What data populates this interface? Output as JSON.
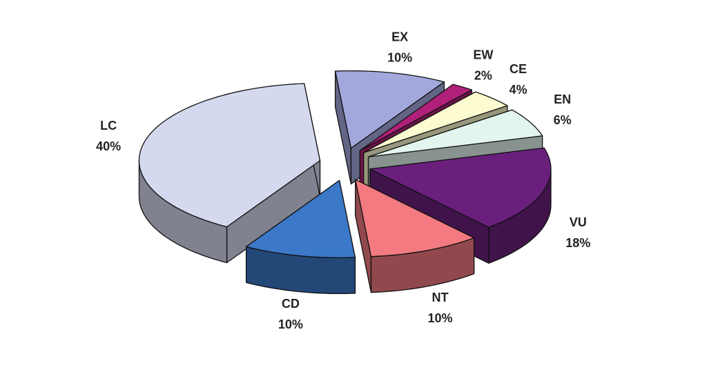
{
  "chart_data": {
    "type": "pie3d",
    "categories": [
      "EX",
      "EW",
      "CE",
      "EN",
      "VU",
      "NT",
      "CD",
      "LC"
    ],
    "values": [
      10,
      2,
      4,
      6,
      18,
      10,
      10,
      40
    ],
    "value_labels": [
      "10%",
      "2%",
      "4%",
      "6%",
      "18%",
      "10%",
      "10%",
      "40%"
    ],
    "colors": [
      "#a3a8dc",
      "#b0207a",
      "#fdfbd0",
      "#e2f5ee",
      "#6a1f7d",
      "#f27a80",
      "#3b78c8",
      "#d5d9ef"
    ]
  }
}
